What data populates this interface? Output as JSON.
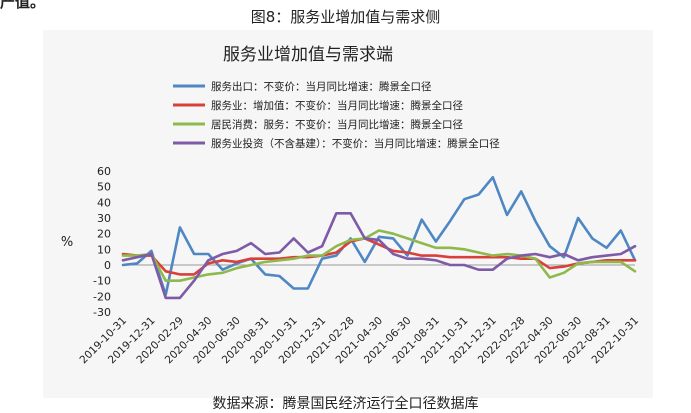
{
  "figure_caption": "图8：服务业增加值与需求侧",
  "top_fragment": "产值。",
  "source_note": "数据来源：腾景国民经济运行全口径数据库",
  "chart_data": {
    "type": "line",
    "title": "服务业增加值与需求端",
    "ylabel": "%",
    "xlabel": "",
    "ylim": [
      -30,
      60
    ],
    "yticks": [
      60,
      50,
      40,
      30,
      20,
      10,
      0,
      -10,
      -20,
      -30
    ],
    "grid": false,
    "legend_position": "top-left",
    "x_tick_labels": [
      "2019-10-31",
      "2019-12-31",
      "2020-02-29",
      "2020-04-30",
      "2020-06-30",
      "2020-08-31",
      "2020-10-31",
      "2020-12-31",
      "2021-02-28",
      "2021-04-30",
      "2021-06-30",
      "2021-08-31",
      "2021-10-31",
      "2021-12-31",
      "2022-02-28",
      "2022-04-30",
      "2022-06-30",
      "2022-08-31",
      "2022-10-31"
    ],
    "x": [
      "2019-10-31",
      "2019-11-30",
      "2019-12-31",
      "2020-01-31",
      "2020-02-29",
      "2020-03-31",
      "2020-04-30",
      "2020-05-31",
      "2020-06-30",
      "2020-07-31",
      "2020-08-31",
      "2020-09-30",
      "2020-10-31",
      "2020-11-30",
      "2020-12-31",
      "2021-01-31",
      "2021-02-28",
      "2021-03-31",
      "2021-04-30",
      "2021-05-31",
      "2021-06-30",
      "2021-07-31",
      "2021-08-31",
      "2021-09-30",
      "2021-10-31",
      "2021-11-30",
      "2021-12-31",
      "2022-01-31",
      "2022-02-28",
      "2022-03-31",
      "2022-04-30",
      "2022-05-31",
      "2022-06-30",
      "2022-07-31",
      "2022-08-31",
      "2022-09-30",
      "2022-10-31"
    ],
    "series": [
      {
        "name": "服务出口：不变价：当月同比增速：腾景全口径",
        "color": "#4f87c3",
        "values": [
          0,
          1,
          9,
          -19,
          24,
          7,
          7,
          -3,
          1,
          4,
          -6,
          -7,
          -15,
          -15,
          4,
          6,
          17,
          2,
          18,
          17,
          6,
          29,
          15,
          28,
          42,
          45,
          56,
          32,
          47,
          28,
          12,
          5,
          30,
          17,
          11,
          22,
          3
        ]
      },
      {
        "name": "服务业：增加值：不变价：当月同比增速：腾景全口径",
        "color": "#d9403a",
        "values": [
          7,
          6,
          6,
          -4,
          -6,
          -6,
          1,
          3,
          2,
          4,
          4,
          4,
          5,
          5,
          6,
          8,
          15,
          17,
          13,
          9,
          8,
          6,
          6,
          5,
          5,
          5,
          5,
          5,
          4,
          4,
          -2,
          -1,
          1,
          2,
          3,
          3,
          3
        ]
      },
      {
        "name": "居民消费：服务：不变价：当月同比增速：腾景全口径",
        "color": "#8fb84d",
        "values": [
          6,
          6,
          7,
          -10,
          -10,
          -8,
          -6,
          -5,
          -2,
          0,
          2,
          3,
          4,
          6,
          6,
          12,
          16,
          17,
          22,
          20,
          17,
          14,
          11,
          11,
          10,
          8,
          6,
          7,
          6,
          4,
          -8,
          -5,
          1,
          2,
          2,
          2,
          -4
        ]
      },
      {
        "name": "服务业投资（不含基建）：不变价：当月同比增速：腾景全口径",
        "color": "#7d5ba6",
        "values": [
          3,
          5,
          7,
          -21,
          -21,
          -10,
          3,
          7,
          9,
          14,
          7,
          8,
          17,
          8,
          12,
          33,
          33,
          17,
          16,
          7,
          4,
          4,
          3,
          0,
          0,
          -3,
          -3,
          4,
          6,
          7,
          5,
          7,
          3,
          5,
          6,
          7,
          12
        ]
      }
    ]
  }
}
